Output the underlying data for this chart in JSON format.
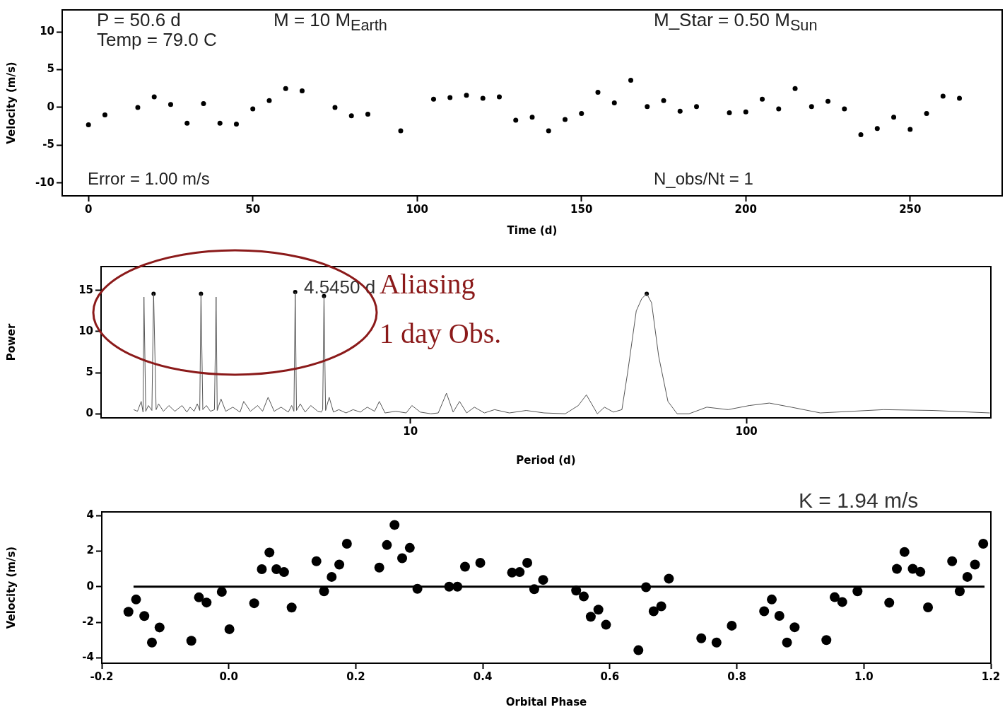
{
  "chart_data": [
    {
      "type": "scatter",
      "xlabel": "Time (d)",
      "ylabel": "Velocity (m/s)",
      "color": "#000000",
      "marker": "circle",
      "x": [
        0,
        5,
        15,
        20,
        25,
        30,
        35,
        40,
        45,
        50,
        55,
        60,
        65,
        75,
        80,
        85,
        95,
        105,
        110,
        115,
        120,
        125,
        130,
        135,
        140,
        145,
        150,
        155,
        160,
        165,
        170,
        175,
        180,
        185,
        195,
        200,
        205,
        210,
        215,
        220,
        225,
        230,
        235,
        240,
        245,
        250,
        255,
        260,
        265
      ],
      "values": [
        -2.3,
        -1.0,
        0,
        1.4,
        0.4,
        -2.1,
        0.5,
        -2.1,
        -2.2,
        -0.2,
        0.9,
        2.5,
        2.2,
        0,
        -1.1,
        -0.9,
        -3.1,
        1.1,
        1.3,
        1.6,
        1.2,
        1.4,
        -1.7,
        -1.3,
        -3.1,
        -1.6,
        -0.8,
        2.0,
        0.6,
        3.6,
        0.1,
        0.9,
        -0.5,
        0.1,
        -0.7,
        -0.6,
        1.1,
        -0.2,
        2.5,
        0.1,
        0.8,
        -0.2,
        -3.6,
        -2.8,
        -1.3,
        -2.9,
        -0.8,
        1.5,
        1.2
      ],
      "xlim": [
        -8,
        278
      ],
      "ylim": [
        -11.7,
        12.9
      ],
      "xticks": [
        0,
        50,
        100,
        150,
        200,
        250
      ],
      "yticks": [
        -10,
        -5,
        0,
        5,
        10
      ],
      "annotations": [
        "P = 50.6 d",
        "M = 10 M$_{Earth}$",
        "M_Star = 0.50 M$_{Sun}$",
        "Temp = 79.0 C",
        "Error = 1.00 m/s",
        "N_obs/Nt = 1"
      ]
    },
    {
      "type": "line",
      "xlabel": "Period (d)",
      "ylabel": "Power",
      "log": "x",
      "series": [
        {
          "color": "#555555",
          "marker": "none",
          "x": [
            1.5,
            1.54,
            1.58,
            1.6,
            1.61,
            1.63,
            1.66,
            1.7,
            1.72,
            1.75,
            1.78,
            1.84,
            1.91,
            1.99,
            2.09,
            2.16,
            2.21,
            2.27,
            2.32,
            2.36,
            2.38,
            2.41,
            2.47,
            2.54,
            2.61,
            2.64,
            2.66,
            2.73,
            2.82,
            2.96,
            3.11,
            3.19,
            3.34,
            3.51,
            3.63,
            3.77,
            3.93,
            4.12,
            4.33,
            4.43,
            4.5,
            4.54,
            4.58,
            4.7,
            4.86,
            5.05,
            5.3,
            5.43,
            5.48,
            5.53,
            5.59,
            5.73,
            5.9,
            6.12,
            6.43,
            6.75,
            7.09,
            7.44,
            7.82,
            8.08,
            8.4,
            9.04,
            9.71,
            10.1,
            10.7,
            11.5,
            12.1,
            12.8,
            13.4,
            14.0,
            14.7,
            15.5,
            16.6,
            17.8,
            19.7,
            22.1,
            25.0,
            28.9,
            31.6,
            33.4,
            36.0,
            37.8,
            40.2,
            42.6,
            44.3,
            47.0,
            48.8,
            50.5,
            52.2,
            54.8,
            58.4,
            62.2,
            67.5,
            76.2,
            88.2,
            102,
            117,
            136,
            166,
            256,
            359,
            530
          ],
          "values": [
            0.5,
            0.3,
            1.5,
            0.2,
            14.2,
            0.3,
            1.0,
            0.4,
            14.6,
            0.5,
            1.2,
            0.3,
            1.0,
            0.3,
            1.0,
            0.2,
            0.8,
            0.3,
            1.2,
            0.4,
            14.6,
            0.5,
            1.0,
            0.3,
            0.5,
            14.2,
            0.4,
            1.8,
            0.3,
            0.8,
            0.2,
            1.5,
            0.3,
            1.0,
            0.3,
            2.0,
            0.3,
            0.8,
            0.2,
            1.0,
            0.3,
            14.8,
            0.4,
            1.2,
            0.2,
            1.0,
            0.3,
            0.2,
            0.5,
            14.3,
            0.4,
            2.0,
            0.2,
            0.5,
            0.1,
            0.5,
            0.2,
            0.8,
            0.3,
            1.5,
            0.1,
            0.3,
            0.1,
            1.0,
            0.2,
            0.0,
            0.1,
            2.5,
            0.2,
            1.5,
            0.1,
            0.8,
            0.1,
            0.5,
            0.1,
            0.4,
            0.1,
            0.0,
            1.0,
            2.3,
            0.0,
            0.8,
            0.2,
            0.5,
            5,
            12.5,
            14.0,
            14.6,
            13.5,
            7,
            1.5,
            0,
            0,
            0.8,
            0.5,
            1.0,
            1.3,
            0.8,
            0.1,
            0.5,
            0.4,
            0.1
          ]
        },
        {
          "type": "scatter",
          "color": "#000000",
          "marker": "circle",
          "x": [
            1.72,
            2.38,
            4.54,
            5.53,
            50.5
          ],
          "values": [
            14.6,
            14.6,
            14.8,
            14.3,
            14.6
          ]
        }
      ],
      "xlim": [
        1.2,
        534
      ],
      "ylim": [
        -0.5,
        17.9
      ],
      "xticks": [
        10,
        100
      ],
      "yticks": [
        0,
        5,
        10,
        15
      ],
      "annotations": [
        {
          "text": "4.5450 d",
          "x": 4.545,
          "y": 14.8
        },
        "Aliasing",
        "1 day Obs."
      ]
    },
    {
      "type": "scatter",
      "xlabel": "Orbital Phase",
      "ylabel": "Velocity (m/s)",
      "series": [
        {
          "type": "scatter",
          "color": "#000000",
          "marker": "circle",
          "x": [
            -0.158,
            -0.146,
            -0.133,
            -0.121,
            -0.109,
            -0.059,
            -0.047,
            -0.035,
            -0.011,
            0.001,
            0.04,
            0.052,
            0.064,
            0.075,
            0.087,
            0.099,
            0.138,
            0.15,
            0.162,
            0.174,
            0.186,
            0.237,
            0.249,
            0.261,
            0.273,
            0.285,
            0.297,
            0.347,
            0.36,
            0.372,
            0.396,
            0.446,
            0.458,
            0.47,
            0.481,
            0.495,
            0.547,
            0.559,
            0.57,
            0.582,
            0.594,
            0.645,
            0.657,
            0.669,
            0.681,
            0.693,
            0.744,
            0.768,
            0.792,
            0.843,
            0.855,
            0.867,
            0.879,
            0.891,
            0.941,
            0.954,
            0.966,
            0.99,
            1.04,
            1.052,
            1.064,
            1.077,
            1.089,
            1.101,
            1.139,
            1.151,
            1.163,
            1.175,
            1.188
          ],
          "values": [
            -1.41,
            -0.72,
            -1.65,
            -3.14,
            -2.29,
            -3.04,
            -0.6,
            -0.89,
            -0.29,
            -2.39,
            -0.93,
            0.98,
            1.92,
            0.98,
            0.82,
            -1.17,
            1.43,
            -0.26,
            0.55,
            1.24,
            2.41,
            1.07,
            2.34,
            3.47,
            1.6,
            2.18,
            -0.12,
            0,
            0,
            1.12,
            1.34,
            0.79,
            0.82,
            1.34,
            -0.14,
            0.38,
            -0.22,
            -0.55,
            -1.69,
            -1.29,
            -2.14,
            -3.57,
            -0.03,
            -1.38,
            -1.1,
            0.45,
            -2.9,
            -3.14,
            -2.19,
            -1.38,
            -0.72,
            -1.64,
            -3.14,
            -2.28,
            -3.0,
            -0.59,
            -0.86,
            -0.26,
            -0.9,
            1.0,
            1.95,
            1.0,
            0.83,
            -1.16,
            1.43,
            -0.26,
            0.55,
            1.24,
            2.41
          ]
        },
        {
          "type": "line",
          "color": "#000000",
          "marker": "none",
          "x": [
            -0.15,
            1.19
          ],
          "values": [
            0,
            0
          ]
        }
      ],
      "xlim": [
        -0.2,
        1.2
      ],
      "ylim": [
        -4.3,
        4.2
      ],
      "xticks": [
        -0.2,
        {
          "value": 0,
          "label": "0.0"
        },
        0.2,
        0.4,
        0.6,
        0.8,
        {
          "value": 1,
          "label": "1.0"
        },
        1.2
      ],
      "yticks": [
        -4,
        -2,
        0,
        2,
        4
      ],
      "annotations": [
        "K = 1.94 m/s"
      ]
    }
  ]
}
